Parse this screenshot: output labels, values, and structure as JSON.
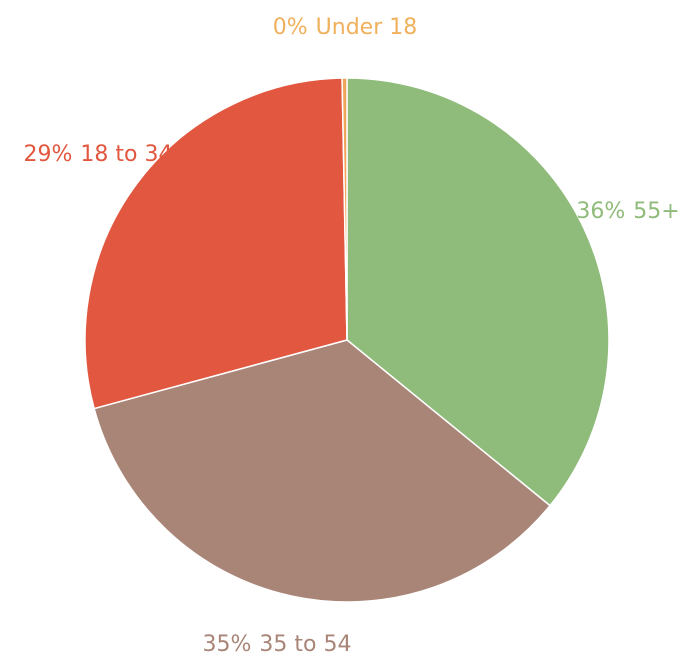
{
  "chart_data": {
    "type": "pie",
    "categories": [
      "55+",
      "35 to 54",
      "18 to 34",
      "Under 18"
    ],
    "values": [
      36,
      35,
      29,
      0.3
    ],
    "value_labels": [
      "36%",
      "35%",
      "29%",
      "0%"
    ],
    "colors": [
      "#8fbb7b",
      "#a98577",
      "#e25740",
      "#f3a35c"
    ],
    "label_colors": [
      "#8fbb7b",
      "#a98577",
      "#e25740",
      "#f0b05c"
    ]
  }
}
